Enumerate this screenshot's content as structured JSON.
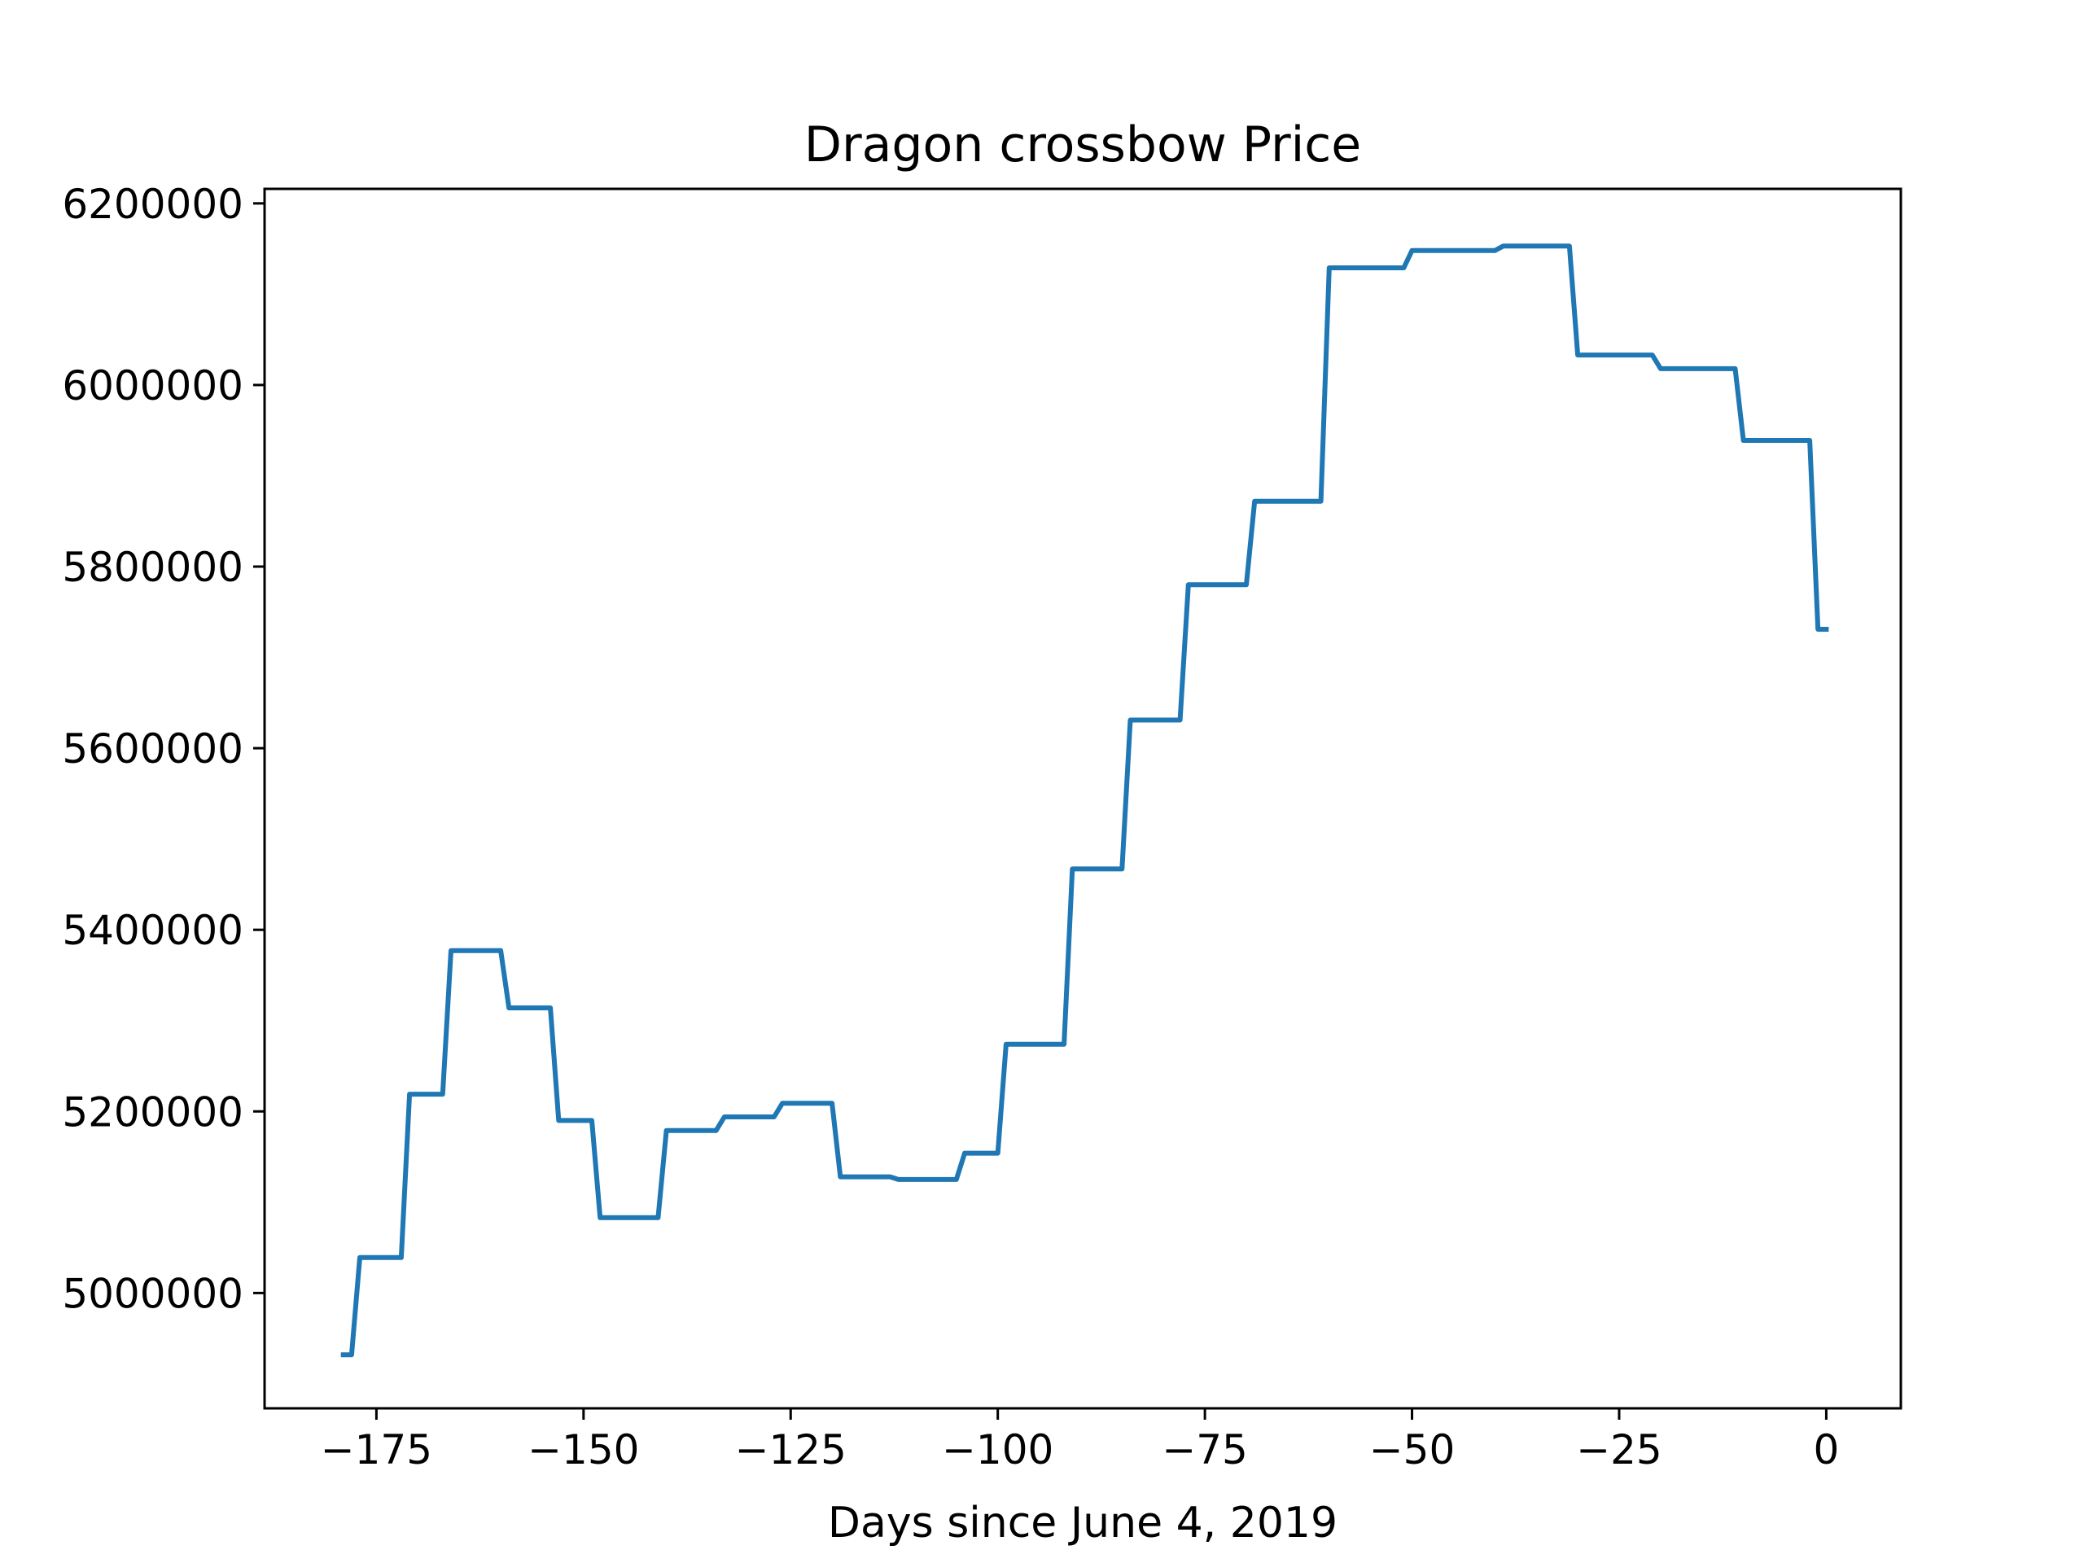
{
  "chart_data": {
    "type": "line",
    "title": "Dragon crossbow Price",
    "xlabel": "Days since June 4, 2019",
    "ylabel": "",
    "xlim": [
      -188.5,
      9
    ],
    "ylim": [
      4873000,
      6216000
    ],
    "xticks": [
      -175,
      -150,
      -125,
      -100,
      -75,
      -50,
      -25,
      0
    ],
    "xtick_labels": [
      "−175",
      "−150",
      "−125",
      "−100",
      "−75",
      "−50",
      "−25",
      "0"
    ],
    "yticks": [
      5000000,
      5200000,
      5400000,
      5600000,
      5800000,
      6000000,
      6200000
    ],
    "ytick_labels": [
      "5000000",
      "5200000",
      "5400000",
      "5600000",
      "5800000",
      "6000000",
      "6200000"
    ],
    "grid": false,
    "legend": "none",
    "series": [
      {
        "color": "#1f77b4",
        "x": [
          -179,
          -178,
          -177,
          -172,
          -171,
          -167,
          -166,
          -160,
          -159,
          -154,
          -153,
          -149,
          -148,
          -141,
          -140,
          -134,
          -133,
          -127,
          -126,
          -120,
          -119,
          -113,
          -112,
          -105,
          -104,
          -100,
          -99,
          -92,
          -91,
          -85,
          -84,
          -78,
          -77,
          -70,
          -69,
          -61,
          -60,
          -51,
          -50,
          -40,
          -39,
          -31,
          -30,
          -21,
          -20,
          -11,
          -10,
          -2,
          -1,
          0
        ],
        "y": [
          4932000,
          4932000,
          5039000,
          5039000,
          5219000,
          5219000,
          5377000,
          5377000,
          5314000,
          5314000,
          5190000,
          5190000,
          5083000,
          5083000,
          5179000,
          5179000,
          5194000,
          5194000,
          5209000,
          5209000,
          5128000,
          5128000,
          5125000,
          5125000,
          5154000,
          5154000,
          5274000,
          5274000,
          5467000,
          5467000,
          5631000,
          5631000,
          5780000,
          5780000,
          5872000,
          5872000,
          6129000,
          6129000,
          6148000,
          6148000,
          6153000,
          6153000,
          6033000,
          6033000,
          6018000,
          6018000,
          5939000,
          5939000,
          5731000,
          5731000
        ]
      }
    ]
  }
}
